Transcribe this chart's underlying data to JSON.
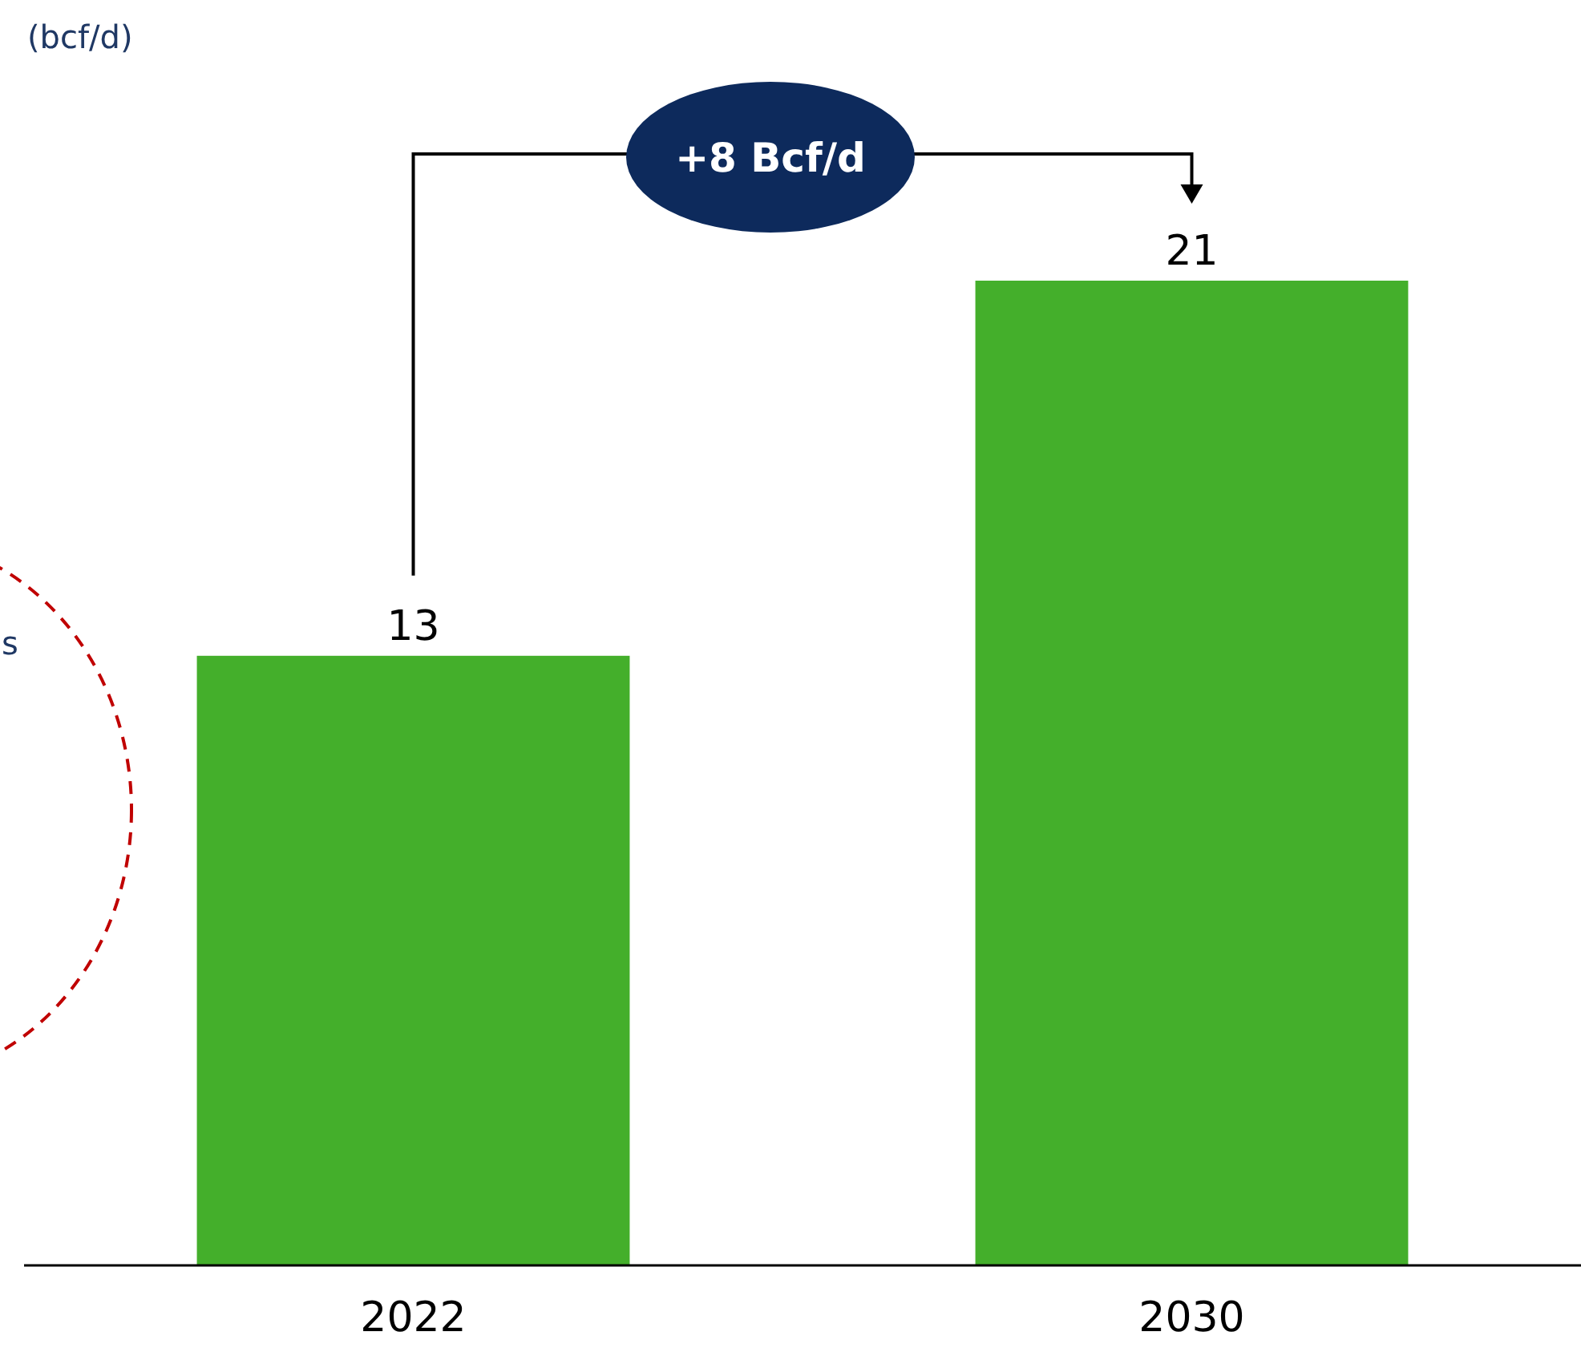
{
  "chart_data": {
    "type": "bar",
    "categories": [
      "2022",
      "2030"
    ],
    "values": [
      13,
      21
    ],
    "color": "#44af2b",
    "data_labels": true,
    "annotations": [
      "+8 Bcf/d",
      "s",
      "(bcf/d)"
    ]
  }
}
